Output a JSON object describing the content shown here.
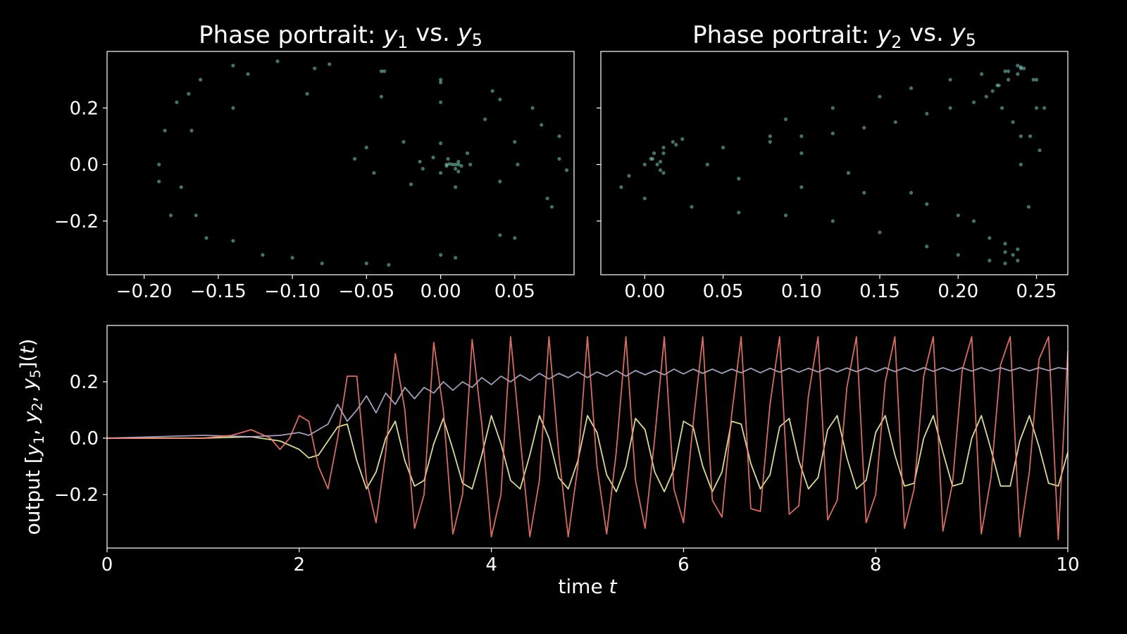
{
  "figure": {
    "background": "#000000",
    "foreground": "#ffffff"
  },
  "chart_data": [
    {
      "type": "scatter",
      "title": "Phase portrait: y1 vs. y5",
      "title_parts": [
        "Phase portrait: ",
        "y",
        "1",
        " vs. ",
        "y",
        "5"
      ],
      "xlim": [
        -0.225,
        0.09
      ],
      "ylim": [
        -0.39,
        0.4
      ],
      "xticks": [
        -0.2,
        -0.15,
        -0.1,
        -0.05,
        0.0,
        0.05
      ],
      "xtick_labels": [
        "−0.20",
        "−0.15",
        "−0.10",
        "−0.05",
        "0.00",
        "0.05"
      ],
      "yticks": [
        0.2,
        0.0,
        -0.2
      ],
      "ytick_labels": [
        "0.2",
        "0.0",
        "−0.2"
      ],
      "color": "#7fcdbb",
      "x": [
        -0.19,
        -0.186,
        -0.178,
        -0.162,
        -0.14,
        -0.11,
        -0.075,
        -0.038,
        0.0,
        0.035,
        0.062,
        0.08,
        0.085,
        0.075,
        0.05,
        0.01,
        -0.035,
        -0.08,
        -0.12,
        -0.158,
        -0.182,
        -0.19,
        -0.17,
        -0.13,
        -0.085,
        -0.04,
        0.0,
        0.04,
        0.068,
        0.08,
        0.072,
        0.04,
        0.0,
        -0.05,
        -0.1,
        -0.14,
        -0.165,
        -0.175,
        -0.168,
        -0.14,
        -0.09,
        -0.04,
        0.0,
        0.03,
        0.05,
        0.052,
        0.04,
        0.01,
        -0.02,
        -0.045,
        -0.058,
        -0.05,
        -0.025,
        0.0,
        0.018,
        0.02,
        0.012,
        0.0,
        -0.012,
        -0.014,
        -0.005,
        0.005,
        0.012,
        0.014,
        0.01,
        0.004,
        0.004,
        0.006,
        0.008,
        0.01,
        0.012
      ],
      "y": [
        0.0,
        0.12,
        0.22,
        0.3,
        0.35,
        0.365,
        0.355,
        0.33,
        0.3,
        0.26,
        0.2,
        0.1,
        -0.02,
        -0.15,
        -0.26,
        -0.33,
        -0.355,
        -0.35,
        -0.32,
        -0.26,
        -0.18,
        -0.06,
        0.25,
        0.32,
        0.34,
        0.33,
        0.29,
        0.23,
        0.14,
        0.02,
        -0.12,
        -0.25,
        -0.32,
        -0.35,
        -0.33,
        -0.27,
        -0.18,
        -0.08,
        0.12,
        0.2,
        0.25,
        0.24,
        0.22,
        0.16,
        0.08,
        0.0,
        -0.06,
        -0.08,
        -0.07,
        -0.03,
        0.02,
        0.06,
        0.08,
        0.075,
        0.04,
        0.0,
        -0.025,
        -0.03,
        -0.015,
        0.01,
        0.025,
        0.02,
        0.01,
        -0.005,
        -0.015,
        -0.005,
        0.0,
        0.002,
        0.0,
        0.0,
        0.0
      ]
    },
    {
      "type": "scatter",
      "title": "Phase portrait: y2 vs. y5",
      "title_parts": [
        "Phase portrait: ",
        "y",
        "2",
        " vs. ",
        "y",
        "5"
      ],
      "xlim": [
        -0.028,
        0.27
      ],
      "ylim": [
        -0.39,
        0.4
      ],
      "xticks": [
        0.0,
        0.05,
        0.1,
        0.15,
        0.2,
        0.25
      ],
      "xtick_labels": [
        "0.00",
        "0.05",
        "0.10",
        "0.15",
        "0.20",
        "0.25"
      ],
      "yticks": [
        0.2,
        0.0,
        -0.2
      ],
      "ytick_labels": [
        "",
        "",
        ""
      ],
      "color": "#7fcdbb",
      "x": [
        0.0,
        0.004,
        0.008,
        0.01,
        0.012,
        0.01,
        0.006,
        0.012,
        0.018,
        0.024,
        0.02,
        0.012,
        0.005,
        -0.01,
        -0.015,
        0.0,
        0.03,
        0.06,
        0.09,
        0.12,
        0.15,
        0.18,
        0.2,
        0.22,
        0.23,
        0.238,
        0.245,
        0.252,
        0.255,
        0.25,
        0.242,
        0.238,
        0.24,
        0.238,
        0.232,
        0.226,
        0.222,
        0.218,
        0.21,
        0.195,
        0.18,
        0.16,
        0.14,
        0.12,
        0.1,
        0.08,
        0.05,
        0.04,
        0.06,
        0.1,
        0.14,
        0.18,
        0.21,
        0.23,
        0.235,
        0.23,
        0.215,
        0.195,
        0.17,
        0.15,
        0.12,
        0.09,
        0.08,
        0.1,
        0.13,
        0.17,
        0.2,
        0.22,
        0.23,
        0.238,
        0.24,
        0.235,
        0.228,
        0.225,
        0.232,
        0.24,
        0.248,
        0.25,
        0.246,
        0.24
      ],
      "y": [
        0.0,
        0.02,
        0.0,
        -0.02,
        -0.03,
        0.01,
        0.04,
        0.06,
        0.08,
        0.09,
        0.07,
        0.04,
        0.02,
        -0.04,
        -0.08,
        -0.12,
        -0.15,
        -0.17,
        -0.18,
        -0.2,
        -0.24,
        -0.29,
        -0.32,
        -0.34,
        -0.35,
        -0.3,
        -0.15,
        0.05,
        0.2,
        0.3,
        0.34,
        0.35,
        0.345,
        0.32,
        0.3,
        0.28,
        0.26,
        0.24,
        0.22,
        0.2,
        0.18,
        0.15,
        0.13,
        0.11,
        0.1,
        0.08,
        0.06,
        0.0,
        -0.05,
        -0.08,
        -0.1,
        -0.14,
        -0.2,
        -0.28,
        -0.32,
        0.33,
        0.32,
        0.3,
        0.27,
        0.24,
        0.2,
        0.16,
        0.1,
        0.04,
        -0.03,
        -0.1,
        -0.18,
        -0.26,
        -0.31,
        -0.34,
        0.1,
        0.15,
        0.2,
        0.28,
        0.33,
        0.34,
        0.3,
        0.2,
        0.1,
        0.0
      ]
    },
    {
      "type": "line",
      "title": "",
      "xlabel_parts": [
        "time ",
        "t"
      ],
      "ylabel_parts": [
        "output [",
        "y",
        "1",
        ", ",
        "y",
        "2",
        ", ",
        "y",
        "5",
        "](",
        "t",
        ")"
      ],
      "xlim": [
        0,
        10
      ],
      "ylim": [
        -0.39,
        0.4
      ],
      "xticks": [
        0,
        2,
        4,
        6,
        8,
        10
      ],
      "xtick_labels": [
        "0",
        "2",
        "4",
        "6",
        "8",
        "10"
      ],
      "yticks": [
        0.2,
        0.0,
        -0.2
      ],
      "ytick_labels": [
        "0.2",
        "0.0",
        "−0.2"
      ],
      "series": [
        {
          "color": "#ffffb3",
          "x": [
            0,
            1.0,
            1.5,
            1.8,
            2.0,
            2.1,
            2.2,
            2.3,
            2.4,
            2.5,
            2.6,
            2.7,
            2.8,
            2.9,
            3.0,
            3.1,
            3.2,
            3.3,
            3.4,
            3.5,
            3.6,
            3.7,
            3.8,
            3.9,
            4.0,
            4.1,
            4.2,
            4.3,
            4.4,
            4.5,
            4.6,
            4.7,
            4.8,
            4.9,
            5.0,
            5.1,
            5.2,
            5.3,
            5.4,
            5.5,
            5.6,
            5.7,
            5.8,
            5.9,
            6.0,
            6.1,
            6.2,
            6.3,
            6.4,
            6.5,
            6.6,
            6.7,
            6.8,
            6.9,
            7.0,
            7.1,
            7.2,
            7.3,
            7.4,
            7.5,
            7.6,
            7.7,
            7.8,
            7.9,
            8.0,
            8.1,
            8.2,
            8.3,
            8.4,
            8.5,
            8.6,
            8.7,
            8.8,
            8.9,
            9.0,
            9.1,
            9.2,
            9.3,
            9.4,
            9.5,
            9.6,
            9.7,
            9.8,
            9.9,
            10.0
          ],
          "y": [
            0.0,
            0.0,
            0.005,
            -0.01,
            -0.04,
            -0.07,
            -0.06,
            -0.01,
            0.04,
            0.05,
            -0.08,
            -0.18,
            -0.12,
            0.0,
            0.06,
            -0.08,
            -0.17,
            -0.15,
            -0.02,
            0.07,
            -0.04,
            -0.16,
            -0.18,
            -0.06,
            0.08,
            -0.02,
            -0.15,
            -0.18,
            -0.06,
            0.08,
            0.0,
            -0.14,
            -0.18,
            -0.08,
            0.08,
            0.02,
            -0.13,
            -0.19,
            -0.1,
            0.07,
            0.03,
            -0.12,
            -0.19,
            -0.11,
            0.06,
            0.04,
            -0.1,
            -0.19,
            -0.12,
            0.06,
            0.05,
            -0.09,
            -0.18,
            -0.13,
            0.04,
            0.07,
            -0.08,
            -0.18,
            -0.14,
            0.03,
            0.08,
            -0.07,
            -0.18,
            -0.15,
            0.02,
            0.08,
            -0.06,
            -0.17,
            -0.16,
            0.0,
            0.08,
            -0.05,
            -0.17,
            -0.16,
            0.0,
            0.08,
            -0.04,
            -0.17,
            -0.17,
            -0.01,
            0.08,
            -0.03,
            -0.16,
            -0.17,
            -0.05
          ]
        },
        {
          "color": "#bebada",
          "x": [
            0,
            1.0,
            1.5,
            1.8,
            2.0,
            2.1,
            2.2,
            2.3,
            2.4,
            2.5,
            2.6,
            2.7,
            2.8,
            2.9,
            3.0,
            3.1,
            3.2,
            3.3,
            3.4,
            3.5,
            3.6,
            3.7,
            3.8,
            3.9,
            4.0,
            4.1,
            4.2,
            4.3,
            4.4,
            4.5,
            4.6,
            4.7,
            4.8,
            4.9,
            5.0,
            5.1,
            5.2,
            5.3,
            5.4,
            5.5,
            5.6,
            5.7,
            5.8,
            5.9,
            6.0,
            6.1,
            6.2,
            6.3,
            6.4,
            6.5,
            6.6,
            6.7,
            6.8,
            6.9,
            7.0,
            7.1,
            7.2,
            7.3,
            7.4,
            7.5,
            7.6,
            7.7,
            7.8,
            7.9,
            8.0,
            8.1,
            8.2,
            8.3,
            8.4,
            8.5,
            8.6,
            8.7,
            8.8,
            8.9,
            9.0,
            9.1,
            9.2,
            9.3,
            9.4,
            9.5,
            9.6,
            9.7,
            9.8,
            9.9,
            10.0
          ],
          "y": [
            0.0,
            0.01,
            0.005,
            0.01,
            0.02,
            0.01,
            0.03,
            0.05,
            0.12,
            0.06,
            0.1,
            0.15,
            0.09,
            0.16,
            0.12,
            0.18,
            0.14,
            0.18,
            0.16,
            0.2,
            0.17,
            0.2,
            0.18,
            0.215,
            0.19,
            0.22,
            0.2,
            0.225,
            0.205,
            0.23,
            0.21,
            0.23,
            0.215,
            0.235,
            0.215,
            0.235,
            0.22,
            0.24,
            0.22,
            0.24,
            0.225,
            0.24,
            0.225,
            0.245,
            0.228,
            0.245,
            0.23,
            0.245,
            0.23,
            0.245,
            0.232,
            0.248,
            0.232,
            0.248,
            0.234,
            0.248,
            0.234,
            0.248,
            0.235,
            0.249,
            0.235,
            0.249,
            0.236,
            0.249,
            0.236,
            0.25,
            0.236,
            0.25,
            0.237,
            0.25,
            0.237,
            0.25,
            0.238,
            0.25,
            0.238,
            0.25,
            0.238,
            0.25,
            0.239,
            0.25,
            0.239,
            0.25,
            0.24,
            0.25,
            0.245
          ]
        },
        {
          "color": "#fb8072",
          "x": [
            0,
            1.0,
            1.3,
            1.5,
            1.7,
            1.8,
            1.9,
            2.0,
            2.1,
            2.2,
            2.3,
            2.4,
            2.5,
            2.6,
            2.7,
            2.8,
            2.9,
            3.0,
            3.1,
            3.2,
            3.3,
            3.4,
            3.5,
            3.6,
            3.7,
            3.8,
            3.9,
            4.0,
            4.1,
            4.2,
            4.3,
            4.4,
            4.5,
            4.6,
            4.7,
            4.8,
            4.9,
            5.0,
            5.1,
            5.2,
            5.3,
            5.4,
            5.5,
            5.6,
            5.7,
            5.8,
            5.9,
            6.0,
            6.1,
            6.2,
            6.3,
            6.4,
            6.5,
            6.6,
            6.7,
            6.8,
            6.9,
            7.0,
            7.1,
            7.2,
            7.3,
            7.4,
            7.5,
            7.6,
            7.7,
            7.8,
            7.9,
            8.0,
            8.1,
            8.2,
            8.3,
            8.4,
            8.5,
            8.6,
            8.7,
            8.8,
            8.9,
            9.0,
            9.1,
            9.2,
            9.3,
            9.4,
            9.5,
            9.6,
            9.7,
            9.8,
            9.9,
            10.0
          ],
          "y": [
            0.0,
            0.0,
            0.01,
            0.03,
            0.0,
            -0.04,
            0.0,
            0.08,
            0.06,
            -0.1,
            -0.18,
            0.0,
            0.22,
            0.22,
            -0.15,
            -0.3,
            -0.05,
            0.3,
            0.1,
            -0.32,
            -0.2,
            0.34,
            0.1,
            -0.34,
            -0.2,
            0.35,
            0.05,
            -0.35,
            -0.2,
            0.36,
            0.0,
            -0.35,
            -0.15,
            0.36,
            -0.05,
            -0.35,
            -0.1,
            0.36,
            -0.1,
            -0.34,
            -0.05,
            0.36,
            -0.15,
            -0.32,
            0.0,
            0.36,
            -0.18,
            -0.3,
            0.05,
            0.36,
            -0.22,
            -0.28,
            0.08,
            0.36,
            -0.25,
            -0.26,
            0.12,
            0.36,
            -0.27,
            -0.24,
            0.15,
            0.36,
            -0.29,
            -0.22,
            0.18,
            0.36,
            -0.3,
            -0.2,
            0.2,
            0.36,
            -0.32,
            -0.18,
            0.22,
            0.36,
            -0.33,
            -0.16,
            0.24,
            0.36,
            -0.34,
            -0.14,
            0.26,
            0.36,
            -0.35,
            -0.12,
            0.28,
            0.36,
            -0.36,
            0.31
          ]
        }
      ]
    }
  ]
}
